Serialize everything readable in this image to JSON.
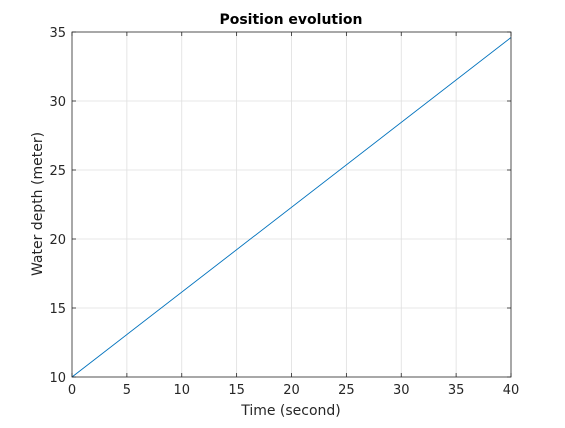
{
  "chart_data": {
    "type": "line",
    "title": "Position evolution",
    "xlabel": "Time (second)",
    "ylabel": "Water depth (meter)",
    "xlim": [
      0,
      40
    ],
    "ylim": [
      10,
      35
    ],
    "xticks": [
      0,
      5,
      10,
      15,
      20,
      25,
      30,
      35,
      40
    ],
    "yticks": [
      10,
      15,
      20,
      25,
      30,
      35
    ],
    "grid": true,
    "series": [
      {
        "color": "#0072bd",
        "x": [
          0,
          40
        ],
        "y": [
          10,
          34.6
        ]
      }
    ]
  }
}
